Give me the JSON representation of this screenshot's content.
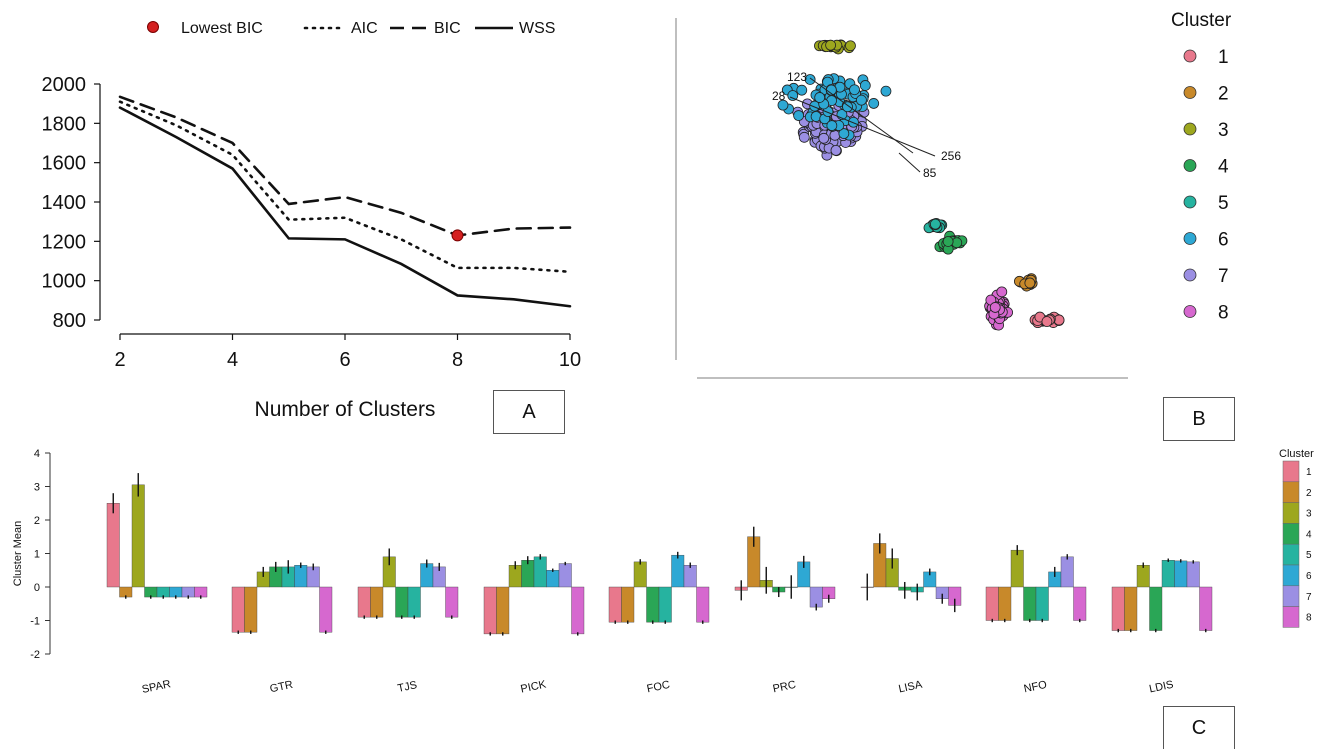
{
  "panels": {
    "a": "A",
    "b": "B",
    "c": "C"
  },
  "chart_data": [
    {
      "type": "line",
      "panel": "A",
      "xlabel": "Number of Clusters",
      "ylabel": "",
      "xlim": [
        2,
        10
      ],
      "ylim": [
        800,
        2000
      ],
      "xticks": [
        2,
        4,
        6,
        8,
        10
      ],
      "yticks": [
        800,
        1000,
        1200,
        1400,
        1600,
        1800,
        2000
      ],
      "x": [
        2,
        3,
        4,
        5,
        6,
        7,
        8,
        9,
        10
      ],
      "series": [
        {
          "name": "AIC",
          "style": "dotted",
          "values": [
            1910,
            1790,
            1640,
            1310,
            1320,
            1210,
            1065,
            1065,
            1045
          ]
        },
        {
          "name": "BIC",
          "style": "dashed",
          "values": [
            1935,
            1830,
            1700,
            1390,
            1425,
            1345,
            1230,
            1265,
            1270
          ]
        },
        {
          "name": "WSS",
          "style": "solid",
          "values": [
            1880,
            1730,
            1570,
            1215,
            1210,
            1085,
            925,
            905,
            870
          ]
        }
      ],
      "highlight": {
        "name": "Lowest BIC",
        "x": 8,
        "y": 1230,
        "color": "#d42020"
      },
      "legend": [
        "Lowest BIC",
        "AIC",
        "BIC",
        "WSS"
      ]
    },
    {
      "type": "scatter",
      "panel": "B",
      "legend_title": "Cluster",
      "clusters": [
        {
          "id": "1",
          "color": "#e8788c"
        },
        {
          "id": "2",
          "color": "#c8892a"
        },
        {
          "id": "3",
          "color": "#9da71e"
        },
        {
          "id": "4",
          "color": "#2aa656"
        },
        {
          "id": "5",
          "color": "#26b3a0"
        },
        {
          "id": "6",
          "color": "#2ea8d4"
        },
        {
          "id": "7",
          "color": "#9b8fe3"
        },
        {
          "id": "8",
          "color": "#d668cf"
        }
      ],
      "annotations": [
        "123",
        "28",
        "256",
        "85"
      ],
      "x_range": [
        0,
        100
      ],
      "y_range": [
        0,
        100
      ],
      "groups": [
        {
          "cluster": "3",
          "cx": 22,
          "cy": 95,
          "sx": 4.0,
          "sy": 0.8,
          "n": 20
        },
        {
          "cluster": "7",
          "cx": 22,
          "cy": 70,
          "sx": 8.0,
          "sy": 6.0,
          "n": 140
        },
        {
          "cluster": "6",
          "cx": 22,
          "cy": 78,
          "sx": 12.0,
          "sy": 9.0,
          "n": 70
        },
        {
          "cluster": "5",
          "cx": 54,
          "cy": 39,
          "sx": 3.0,
          "sy": 0.8,
          "n": 16
        },
        {
          "cluster": "4",
          "cx": 59,
          "cy": 34,
          "sx": 3.0,
          "sy": 1.8,
          "n": 22
        },
        {
          "cluster": "2",
          "cx": 83,
          "cy": 22,
          "sx": 3.0,
          "sy": 1.6,
          "n": 18
        },
        {
          "cluster": "8",
          "cx": 73,
          "cy": 13,
          "sx": 2.5,
          "sy": 4.0,
          "n": 70
        },
        {
          "cluster": "1",
          "cx": 88,
          "cy": 10,
          "sx": 3.5,
          "sy": 1.0,
          "n": 22
        }
      ]
    },
    {
      "type": "bar",
      "panel": "C",
      "ylabel": "Cluster Mean",
      "ylim": [
        -2,
        4
      ],
      "yticks": [
        -2,
        -1,
        0,
        1,
        2,
        3,
        4
      ],
      "legend_title": "Cluster",
      "categories": [
        "SPAR",
        "GTR",
        "TJS",
        "PICK",
        "FOC",
        "PRC",
        "LISA",
        "NFO",
        "LDIS"
      ],
      "series": [
        {
          "name": "1",
          "color": "#e8788c",
          "values": [
            2.5,
            -1.35,
            -0.9,
            -1.4,
            -1.05,
            -0.1,
            0.0,
            -1.0,
            -1.3
          ],
          "errors": [
            0.3,
            0.05,
            0.05,
            0.05,
            0.05,
            0.3,
            0.4,
            0.05,
            0.05
          ]
        },
        {
          "name": "2",
          "color": "#c8892a",
          "values": [
            -0.3,
            -1.35,
            -0.9,
            -1.4,
            -1.05,
            1.5,
            1.3,
            -1.0,
            -1.3
          ],
          "errors": [
            0.05,
            0.05,
            0.05,
            0.05,
            0.05,
            0.3,
            0.3,
            0.05,
            0.05
          ]
        },
        {
          "name": "3",
          "color": "#9da71e",
          "values": [
            3.05,
            0.45,
            0.9,
            0.65,
            0.75,
            0.2,
            0.85,
            1.1,
            0.65
          ],
          "errors": [
            0.35,
            0.15,
            0.25,
            0.12,
            0.08,
            0.4,
            0.3,
            0.15,
            0.08
          ]
        },
        {
          "name": "4",
          "color": "#2aa656",
          "values": [
            -0.3,
            0.6,
            -0.9,
            0.8,
            -1.05,
            -0.15,
            -0.1,
            -1.0,
            -1.3
          ],
          "errors": [
            0.05,
            0.15,
            0.05,
            0.12,
            0.05,
            0.15,
            0.25,
            0.05,
            0.05
          ]
        },
        {
          "name": "5",
          "color": "#26b3a0",
          "values": [
            -0.3,
            0.6,
            -0.9,
            0.9,
            -1.05,
            0.0,
            -0.15,
            -1.0,
            0.8
          ],
          "errors": [
            0.05,
            0.2,
            0.05,
            0.08,
            0.05,
            0.35,
            0.25,
            0.05,
            0.05
          ]
        },
        {
          "name": "6",
          "color": "#2ea8d4",
          "values": [
            -0.3,
            0.65,
            0.7,
            0.5,
            0.95,
            0.75,
            0.45,
            0.45,
            0.78
          ],
          "errors": [
            0.05,
            0.08,
            0.12,
            0.05,
            0.1,
            0.18,
            0.1,
            0.15,
            0.05
          ]
        },
        {
          "name": "7",
          "color": "#9b8fe3",
          "values": [
            -0.3,
            0.6,
            0.6,
            0.7,
            0.65,
            -0.6,
            -0.35,
            0.9,
            0.75
          ],
          "errors": [
            0.05,
            0.1,
            0.12,
            0.05,
            0.08,
            0.1,
            0.15,
            0.08,
            0.05
          ]
        },
        {
          "name": "8",
          "color": "#d668cf",
          "values": [
            -0.3,
            -1.35,
            -0.9,
            -1.4,
            -1.05,
            -0.35,
            -0.55,
            -1.0,
            -1.3
          ],
          "errors": [
            0.05,
            0.05,
            0.05,
            0.05,
            0.05,
            0.12,
            0.2,
            0.05,
            0.05
          ]
        }
      ]
    }
  ]
}
